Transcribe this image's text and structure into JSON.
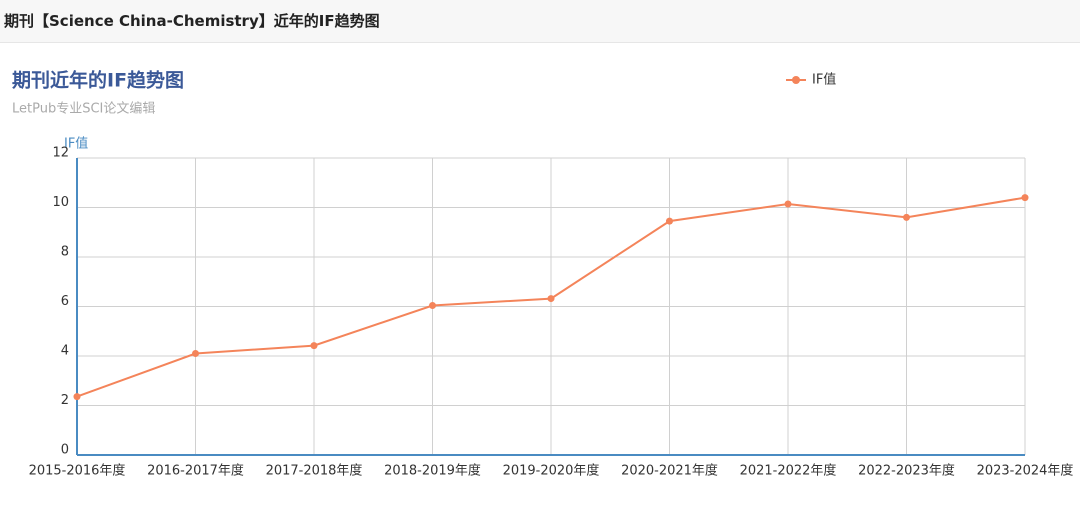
{
  "header": {
    "title": "期刊【Science China-Chemistry】近年的IF趋势图"
  },
  "chart_data": {
    "type": "line",
    "title": "期刊近年的IF趋势图",
    "subtitle": "LetPub专业SCI论文编辑",
    "y_label": "IF值",
    "categories": [
      "2015-2016年度",
      "2016-2017年度",
      "2017-2018年度",
      "2018-2019年度",
      "2019-2020年度",
      "2020-2021年度",
      "2021-2022年度",
      "2022-2023年度",
      "2023-2024年度"
    ],
    "series": [
      {
        "name": "IF值",
        "color": "#f4845a",
        "values": [
          2.36,
          4.1,
          4.42,
          6.04,
          6.32,
          9.45,
          10.14,
          9.6,
          10.4
        ]
      }
    ],
    "ylim": [
      0,
      12
    ],
    "yticks": [
      0,
      2,
      4,
      6,
      8,
      10,
      12
    ],
    "grid": true,
    "legend": "top-right"
  }
}
